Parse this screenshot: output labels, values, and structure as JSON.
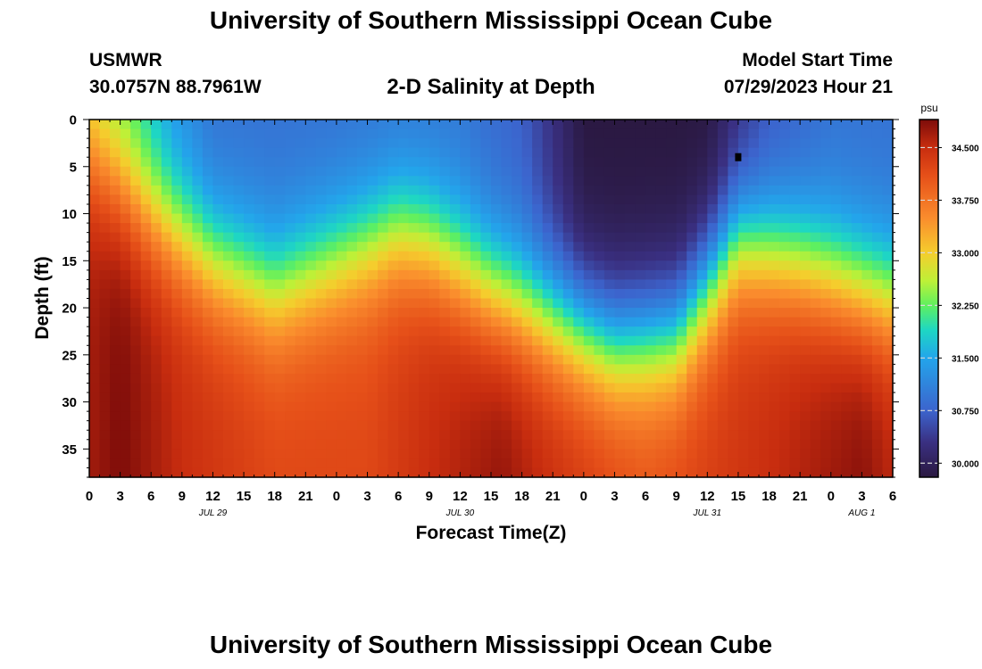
{
  "header": {
    "title": "University of Southern Mississippi Ocean Cube",
    "station": "USMWR",
    "coordinates": "30.0757N  88.7961W",
    "subtitle": "2-D Salinity at Depth",
    "model_start_label": "Model Start Time",
    "model_start_value": "07/29/2023 Hour 21"
  },
  "footer": {
    "title": "University of Southern Mississippi Ocean Cube"
  },
  "chart_data": {
    "type": "heatmap",
    "title": "2-D Salinity at Depth",
    "xlabel": "Forecast Time(Z)",
    "ylabel": "Depth (ft)",
    "x_range_hours": [
      0,
      78
    ],
    "ylim": [
      0,
      38
    ],
    "y_inverted": true,
    "x_ticks": [
      {
        "h": 0,
        "label": "0"
      },
      {
        "h": 3,
        "label": "3"
      },
      {
        "h": 6,
        "label": "6"
      },
      {
        "h": 9,
        "label": "9"
      },
      {
        "h": 12,
        "label": "12"
      },
      {
        "h": 15,
        "label": "15"
      },
      {
        "h": 18,
        "label": "18"
      },
      {
        "h": 21,
        "label": "21"
      },
      {
        "h": 24,
        "label": "0"
      },
      {
        "h": 27,
        "label": "3"
      },
      {
        "h": 30,
        "label": "6"
      },
      {
        "h": 33,
        "label": "9"
      },
      {
        "h": 36,
        "label": "12"
      },
      {
        "h": 39,
        "label": "15"
      },
      {
        "h": 42,
        "label": "18"
      },
      {
        "h": 45,
        "label": "21"
      },
      {
        "h": 48,
        "label": "0"
      },
      {
        "h": 51,
        "label": "3"
      },
      {
        "h": 54,
        "label": "6"
      },
      {
        "h": 57,
        "label": "9"
      },
      {
        "h": 60,
        "label": "12"
      },
      {
        "h": 63,
        "label": "15"
      },
      {
        "h": 66,
        "label": "18"
      },
      {
        "h": 69,
        "label": "21"
      },
      {
        "h": 72,
        "label": "0"
      },
      {
        "h": 75,
        "label": "3"
      },
      {
        "h": 78,
        "label": "6"
      }
    ],
    "date_labels": [
      {
        "h": 12,
        "label": "JUL 29"
      },
      {
        "h": 36,
        "label": "JUL 30"
      },
      {
        "h": 60,
        "label": "JUL 31"
      },
      {
        "h": 75,
        "label": "AUG 1"
      }
    ],
    "y_ticks": [
      0,
      5,
      10,
      15,
      20,
      25,
      30,
      35
    ],
    "colorbar": {
      "unit": "psu",
      "min": 29.8,
      "max": 34.9,
      "ticks": [
        "34.500",
        "33.750",
        "33.000",
        "32.250",
        "31.500",
        "30.750",
        "30.000"
      ]
    },
    "halocline_depth_ft": [
      {
        "h": 0,
        "d": 4
      },
      {
        "h": 6,
        "d": 10
      },
      {
        "h": 12,
        "d": 15
      },
      {
        "h": 18,
        "d": 18
      },
      {
        "h": 24,
        "d": 15
      },
      {
        "h": 30,
        "d": 12
      },
      {
        "h": 33,
        "d": 13
      },
      {
        "h": 39,
        "d": 18
      },
      {
        "h": 45,
        "d": 21
      },
      {
        "h": 51,
        "d": 24
      },
      {
        "h": 57,
        "d": 23
      },
      {
        "h": 60,
        "d": 18
      },
      {
        "h": 63,
        "d": 13
      },
      {
        "h": 69,
        "d": 15
      },
      {
        "h": 75,
        "d": 18
      },
      {
        "h": 78,
        "d": 19
      }
    ],
    "surface_salinity_psu": [
      {
        "h": 0,
        "v": 32.5
      },
      {
        "h": 4,
        "v": 32.0
      },
      {
        "h": 8,
        "v": 31.3
      },
      {
        "h": 12,
        "v": 30.9
      },
      {
        "h": 24,
        "v": 30.9
      },
      {
        "h": 36,
        "v": 30.95
      },
      {
        "h": 42,
        "v": 30.7
      },
      {
        "h": 48,
        "v": 29.8
      },
      {
        "h": 56,
        "v": 29.8
      },
      {
        "h": 60,
        "v": 29.8
      },
      {
        "h": 66,
        "v": 30.6
      },
      {
        "h": 72,
        "v": 30.9
      },
      {
        "h": 78,
        "v": 30.9
      }
    ],
    "bottom_salinity_psu": [
      {
        "h": 0,
        "v": 34.7
      },
      {
        "h": 3,
        "v": 34.9
      },
      {
        "h": 9,
        "v": 34.5
      },
      {
        "h": 18,
        "v": 34.2
      },
      {
        "h": 27,
        "v": 34.2
      },
      {
        "h": 33,
        "v": 34.5
      },
      {
        "h": 40,
        "v": 34.8
      },
      {
        "h": 45,
        "v": 34.5
      },
      {
        "h": 54,
        "v": 34.1
      },
      {
        "h": 60,
        "v": 34.3
      },
      {
        "h": 66,
        "v": 34.5
      },
      {
        "h": 75,
        "v": 34.85
      },
      {
        "h": 78,
        "v": 34.6
      }
    ],
    "marker": {
      "h": 63,
      "d": 4
    }
  }
}
